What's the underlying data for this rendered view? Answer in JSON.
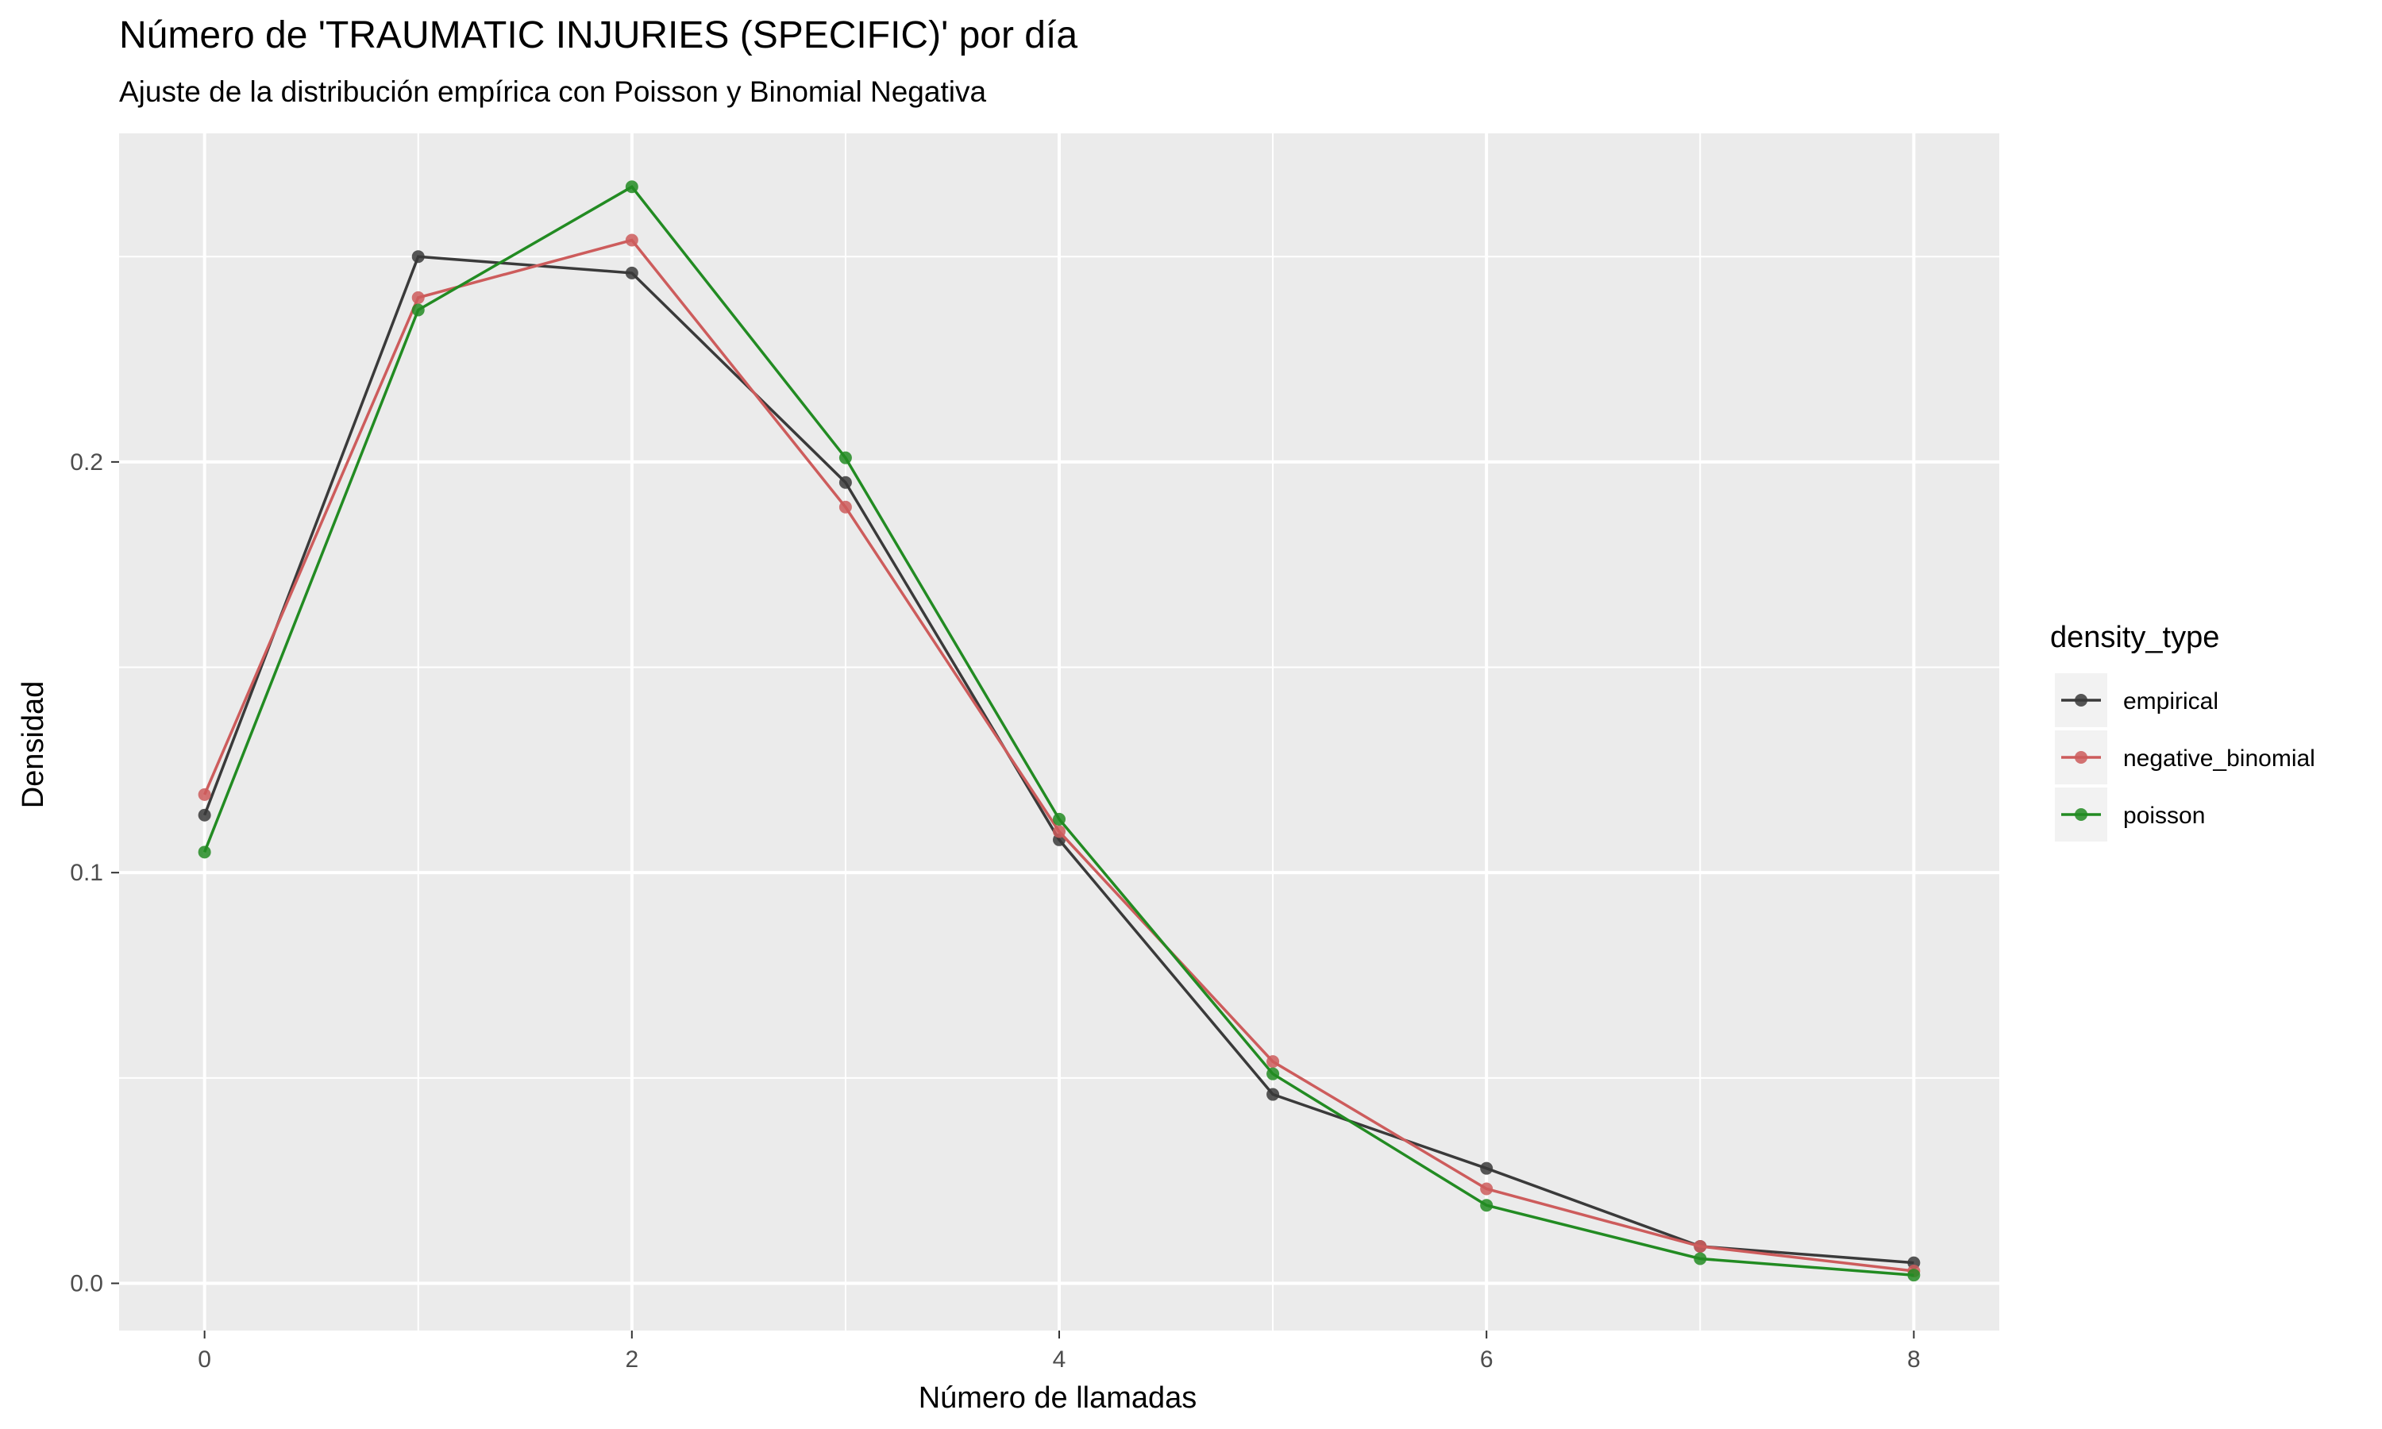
{
  "chart_data": {
    "type": "line",
    "title": "Número de 'TRAUMATIC INJURIES (SPECIFIC)' por día",
    "subtitle": "Ajuste de la distribución empírica con Poisson y Binomial Negativa",
    "xlabel": "Número de llamadas",
    "ylabel": "Densidad",
    "xlim": [
      -0.4,
      8.4
    ],
    "ylim": [
      -0.0115,
      0.28
    ],
    "x_ticks": [
      0,
      2,
      4,
      6,
      8
    ],
    "x_tick_labels": [
      "0",
      "2",
      "4",
      "6",
      "8"
    ],
    "y_ticks": [
      0.0,
      0.1,
      0.2
    ],
    "y_tick_labels": [
      "0.0",
      "0.1",
      "0.2"
    ],
    "grid": true,
    "legend": {
      "title": "density_type",
      "position": "right"
    },
    "x": [
      0,
      1,
      2,
      3,
      4,
      5,
      6,
      7,
      8
    ],
    "series": [
      {
        "name": "empirical",
        "color": "#3a3a3a",
        "values": [
          0.114,
          0.25,
          0.246,
          0.195,
          0.108,
          0.046,
          0.028,
          0.009,
          0.005
        ]
      },
      {
        "name": "negative_binomial",
        "color": "#cd5c5c",
        "values": [
          0.119,
          0.24,
          0.254,
          0.189,
          0.11,
          0.054,
          0.023,
          0.009,
          0.003
        ]
      },
      {
        "name": "poisson",
        "color": "#228b22",
        "values": [
          0.105,
          0.237,
          0.267,
          0.201,
          0.113,
          0.051,
          0.019,
          0.006,
          0.002
        ]
      }
    ]
  }
}
